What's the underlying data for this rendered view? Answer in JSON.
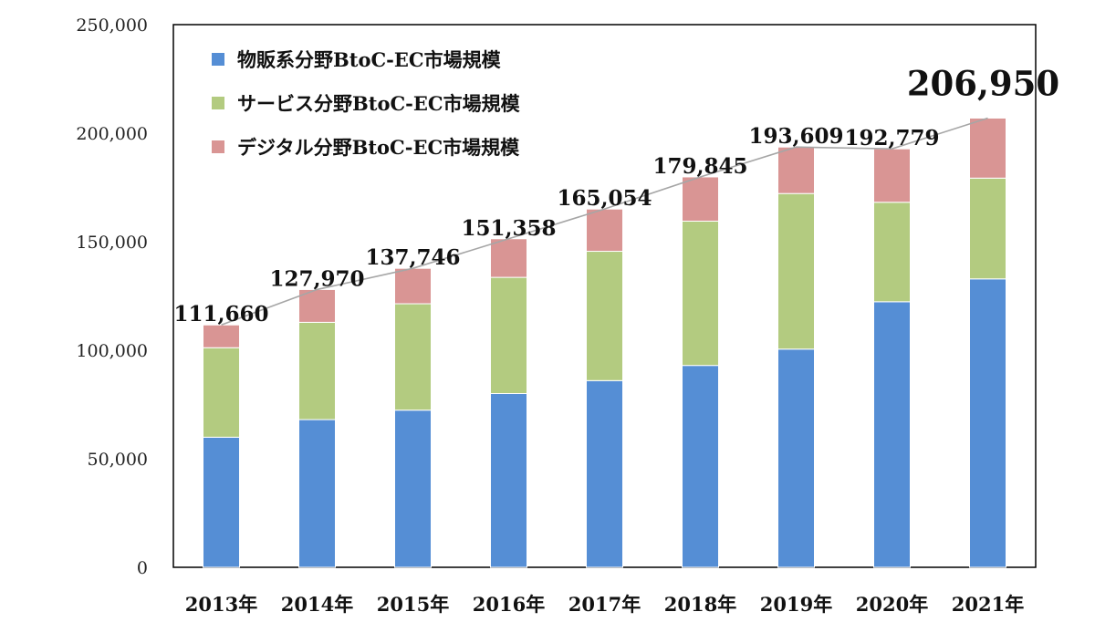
{
  "chart_data": {
    "type": "bar",
    "stacked": true,
    "categories": [
      "2013年",
      "2014年",
      "2015年",
      "2016年",
      "2017年",
      "2018年",
      "2019年",
      "2020年",
      "2021年"
    ],
    "series": [
      {
        "name": "物販系分野BtoC-EC市場規模",
        "color": "#558ed5",
        "values": [
          59931,
          68043,
          72398,
          80043,
          86008,
          92992,
          100515,
          122333,
          132865
        ]
      },
      {
        "name": "サービス分野BtoC-EC市場規模",
        "color": "#b3cb80",
        "values": [
          41229,
          44816,
          49014,
          53532,
          59568,
          66471,
          71672,
          45832,
          46424
        ]
      },
      {
        "name": "デジタル分野BtoC-EC市場規模",
        "color": "#d99594",
        "values": [
          10500,
          15111,
          16334,
          17783,
          19478,
          20382,
          21422,
          24614,
          27661
        ]
      }
    ],
    "totals": [
      111660,
      127970,
      137746,
      151358,
      165054,
      179845,
      193609,
      192779,
      206950
    ],
    "total_labels": [
      "111,660",
      "127,970",
      "137,746",
      "151,358",
      "165,054",
      "179,845",
      "193,609",
      "192,779",
      "206,950"
    ],
    "ytick_labels": [
      "0",
      "50,000",
      "100,000",
      "150,000",
      "200,000",
      "250,000"
    ],
    "ylim": [
      0,
      250000
    ],
    "ytick_step": 50000,
    "total_line": true,
    "grid": false,
    "legend_position": "top-left"
  }
}
